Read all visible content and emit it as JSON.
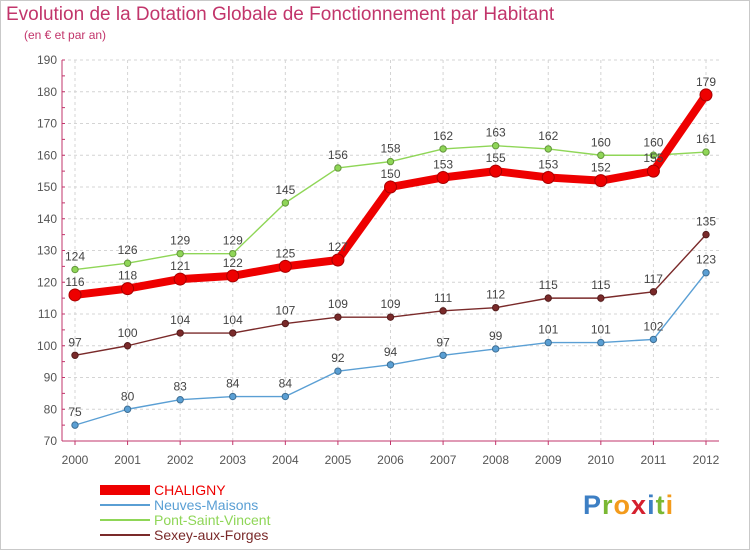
{
  "header": {
    "title": "Evolution de la Dotation Globale de Fonctionnement par Habitant",
    "subtitle": "(en € et par an)"
  },
  "brand": {
    "name": "Proxiti",
    "letter_colors": [
      "#3d7fc4",
      "#7ab833",
      "#f39b1c",
      "#d5202e",
      "#3d7fc4",
      "#7ab833",
      "#f39b1c"
    ]
  },
  "chart_data": {
    "type": "line",
    "title": "Evolution de la Dotation Globale de Fonctionnement par Habitant",
    "subtitle": "(en € et par an)",
    "xlabel": "",
    "ylabel": "",
    "x": [
      "2000",
      "2001",
      "2002",
      "2003",
      "2004",
      "2005",
      "2006",
      "2007",
      "2008",
      "2009",
      "2010",
      "2011",
      "2012"
    ],
    "ylim": [
      70,
      190
    ],
    "yticks": [
      70,
      80,
      90,
      100,
      110,
      120,
      130,
      140,
      150,
      160,
      170,
      180,
      190
    ],
    "grid": true,
    "series": [
      {
        "name": "Neuves-Maisons",
        "color": "#5a9fd4",
        "emphasis": false,
        "values": [
          75,
          80,
          83,
          84,
          84,
          92,
          94,
          97,
          99,
          101,
          101,
          102,
          123
        ]
      },
      {
        "name": "Sexey-aux-Forges",
        "color": "#7a2a2a",
        "emphasis": false,
        "values": [
          97,
          100,
          104,
          104,
          107,
          109,
          109,
          111,
          112,
          115,
          115,
          117,
          135
        ]
      },
      {
        "name": "Pont-Saint-Vincent",
        "color": "#8fd657",
        "emphasis": false,
        "values": [
          124,
          126,
          129,
          129,
          145,
          156,
          158,
          162,
          163,
          162,
          160,
          160,
          161
        ]
      },
      {
        "name": "CHALIGNY",
        "color": "#ee0000",
        "emphasis": true,
        "values": [
          116,
          118,
          121,
          122,
          125,
          127,
          150,
          153,
          155,
          153,
          152,
          155,
          179
        ]
      }
    ],
    "legend": {
      "position": "bottom-left",
      "order": [
        "CHALIGNY",
        "Neuves-Maisons",
        "Pont-Saint-Vincent",
        "Sexey-aux-Forges"
      ]
    }
  }
}
